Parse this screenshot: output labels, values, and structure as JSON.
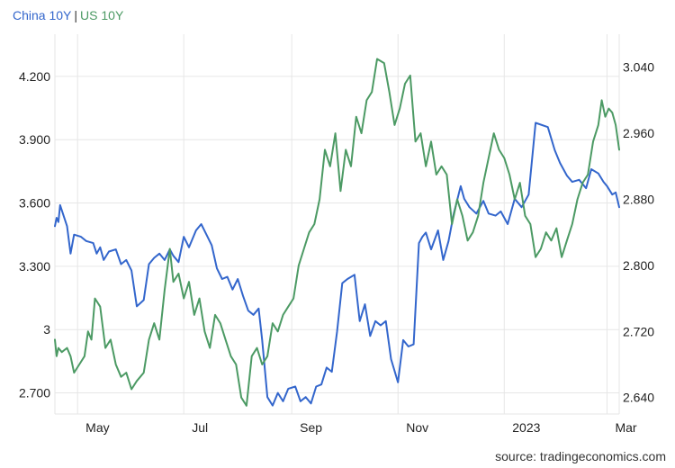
{
  "chart_data": {
    "type": "line",
    "legend": [
      {
        "label": "China 10Y",
        "color": "#3366cc"
      },
      {
        "label": "US 10Y",
        "color": "#4c9a64"
      }
    ],
    "legend_separator": "|",
    "source": "source: tradingeconomics.com",
    "x_range": [
      "2022-04-18",
      "2023-03-08"
    ],
    "x_ticks": [
      {
        "label": "May",
        "date": "2022-05-01"
      },
      {
        "label": "Jul",
        "date": "2022-07-01"
      },
      {
        "label": "Sep",
        "date": "2022-09-01"
      },
      {
        "label": "Nov",
        "date": "2022-11-01"
      },
      {
        "label": "2023",
        "date": "2023-01-01"
      },
      {
        "label": "Mar",
        "date": "2023-03-01"
      }
    ],
    "y_left": {
      "range": [
        2.6,
        4.4
      ],
      "ticks": [
        {
          "label": "2.700",
          "value": 2.7
        },
        {
          "label": "3",
          "value": 3.0
        },
        {
          "label": "3.300",
          "value": 3.3
        },
        {
          "label": "3.600",
          "value": 3.6
        },
        {
          "label": "3.900",
          "value": 3.9
        },
        {
          "label": "4.200",
          "value": 4.2
        }
      ]
    },
    "y_right": {
      "range": [
        2.62,
        3.08
      ],
      "ticks": [
        {
          "label": "2.640",
          "value": 2.64
        },
        {
          "label": "2.720",
          "value": 2.72
        },
        {
          "label": "2.800",
          "value": 2.8
        },
        {
          "label": "2.880",
          "value": 2.88
        },
        {
          "label": "2.960",
          "value": 2.96
        },
        {
          "label": "3.040",
          "value": 3.04
        }
      ]
    },
    "grid": true,
    "series": [
      {
        "name": "China 10Y",
        "axis": "left",
        "color": "#3366cc",
        "points": [
          [
            "2022-04-18",
            3.49
          ],
          [
            "2022-04-19",
            3.53
          ],
          [
            "2022-04-20",
            3.51
          ],
          [
            "2022-04-21",
            3.59
          ],
          [
            "2022-04-25",
            3.49
          ],
          [
            "2022-04-27",
            3.36
          ],
          [
            "2022-04-29",
            3.45
          ],
          [
            "2022-05-03",
            3.44
          ],
          [
            "2022-05-06",
            3.42
          ],
          [
            "2022-05-10",
            3.41
          ],
          [
            "2022-05-12",
            3.36
          ],
          [
            "2022-05-14",
            3.39
          ],
          [
            "2022-05-16",
            3.33
          ],
          [
            "2022-05-19",
            3.37
          ],
          [
            "2022-05-23",
            3.38
          ],
          [
            "2022-05-26",
            3.31
          ],
          [
            "2022-05-29",
            3.33
          ],
          [
            "2022-06-01",
            3.28
          ],
          [
            "2022-06-04",
            3.11
          ],
          [
            "2022-06-08",
            3.14
          ],
          [
            "2022-06-11",
            3.31
          ],
          [
            "2022-06-14",
            3.34
          ],
          [
            "2022-06-17",
            3.36
          ],
          [
            "2022-06-20",
            3.33
          ],
          [
            "2022-06-23",
            3.38
          ],
          [
            "2022-06-25",
            3.35
          ],
          [
            "2022-06-28",
            3.32
          ],
          [
            "2022-07-01",
            3.44
          ],
          [
            "2022-07-04",
            3.39
          ],
          [
            "2022-07-08",
            3.47
          ],
          [
            "2022-07-11",
            3.5
          ],
          [
            "2022-07-14",
            3.45
          ],
          [
            "2022-07-17",
            3.4
          ],
          [
            "2022-07-20",
            3.29
          ],
          [
            "2022-07-23",
            3.24
          ],
          [
            "2022-07-26",
            3.25
          ],
          [
            "2022-07-29",
            3.19
          ],
          [
            "2022-08-01",
            3.24
          ],
          [
            "2022-08-04",
            3.16
          ],
          [
            "2022-08-07",
            3.09
          ],
          [
            "2022-08-10",
            3.07
          ],
          [
            "2022-08-13",
            3.1
          ],
          [
            "2022-08-15",
            2.95
          ],
          [
            "2022-08-18",
            2.68
          ],
          [
            "2022-08-21",
            2.64
          ],
          [
            "2022-08-24",
            2.7
          ],
          [
            "2022-08-27",
            2.66
          ],
          [
            "2022-08-30",
            2.72
          ],
          [
            "2022-09-03",
            2.73
          ],
          [
            "2022-09-06",
            2.66
          ],
          [
            "2022-09-09",
            2.68
          ],
          [
            "2022-09-12",
            2.65
          ],
          [
            "2022-09-15",
            2.73
          ],
          [
            "2022-09-18",
            2.74
          ],
          [
            "2022-09-21",
            2.82
          ],
          [
            "2022-09-24",
            2.8
          ],
          [
            "2022-09-27",
            2.99
          ],
          [
            "2022-09-30",
            3.22
          ],
          [
            "2022-10-03",
            3.24
          ],
          [
            "2022-10-07",
            3.26
          ],
          [
            "2022-10-10",
            3.04
          ],
          [
            "2022-10-13",
            3.12
          ],
          [
            "2022-10-16",
            2.97
          ],
          [
            "2022-10-19",
            3.04
          ],
          [
            "2022-10-22",
            3.02
          ],
          [
            "2022-10-25",
            3.04
          ],
          [
            "2022-10-28",
            2.86
          ],
          [
            "2022-11-01",
            2.75
          ],
          [
            "2022-11-04",
            2.95
          ],
          [
            "2022-11-07",
            2.92
          ],
          [
            "2022-11-10",
            2.93
          ],
          [
            "2022-11-13",
            3.41
          ],
          [
            "2022-11-15",
            3.44
          ],
          [
            "2022-11-17",
            3.46
          ],
          [
            "2022-11-20",
            3.38
          ],
          [
            "2022-11-24",
            3.47
          ],
          [
            "2022-11-27",
            3.33
          ],
          [
            "2022-11-30",
            3.42
          ],
          [
            "2022-12-03",
            3.55
          ],
          [
            "2022-12-07",
            3.68
          ],
          [
            "2022-12-09",
            3.62
          ],
          [
            "2022-12-12",
            3.58
          ],
          [
            "2022-12-16",
            3.55
          ],
          [
            "2022-12-20",
            3.61
          ],
          [
            "2022-12-23",
            3.55
          ],
          [
            "2022-12-27",
            3.54
          ],
          [
            "2022-12-30",
            3.56
          ],
          [
            "2023-01-03",
            3.5
          ],
          [
            "2023-01-07",
            3.62
          ],
          [
            "2023-01-11",
            3.58
          ],
          [
            "2023-01-15",
            3.64
          ],
          [
            "2023-01-19",
            3.98
          ],
          [
            "2023-01-26",
            3.96
          ],
          [
            "2023-01-30",
            3.85
          ],
          [
            "2023-02-02",
            3.79
          ],
          [
            "2023-02-06",
            3.73
          ],
          [
            "2023-02-09",
            3.7
          ],
          [
            "2023-02-13",
            3.71
          ],
          [
            "2023-02-17",
            3.67
          ],
          [
            "2023-02-20",
            3.76
          ],
          [
            "2023-02-24",
            3.74
          ],
          [
            "2023-02-27",
            3.7
          ],
          [
            "2023-03-01",
            3.68
          ],
          [
            "2023-03-04",
            3.64
          ],
          [
            "2023-03-06",
            3.65
          ],
          [
            "2023-03-08",
            3.58
          ]
        ]
      },
      {
        "name": "US 10Y",
        "axis": "right",
        "color": "#4c9a64",
        "points": [
          [
            "2022-04-18",
            2.71
          ],
          [
            "2022-04-19",
            2.69
          ],
          [
            "2022-04-20",
            2.7
          ],
          [
            "2022-04-22",
            2.695
          ],
          [
            "2022-04-25",
            2.7
          ],
          [
            "2022-04-27",
            2.69
          ],
          [
            "2022-04-29",
            2.67
          ],
          [
            "2022-05-02",
            2.68
          ],
          [
            "2022-05-05",
            2.69
          ],
          [
            "2022-05-07",
            2.72
          ],
          [
            "2022-05-09",
            2.71
          ],
          [
            "2022-05-11",
            2.76
          ],
          [
            "2022-05-14",
            2.75
          ],
          [
            "2022-05-17",
            2.7
          ],
          [
            "2022-05-20",
            2.71
          ],
          [
            "2022-05-23",
            2.68
          ],
          [
            "2022-05-26",
            2.665
          ],
          [
            "2022-05-29",
            2.67
          ],
          [
            "2022-06-01",
            2.65
          ],
          [
            "2022-06-04",
            2.66
          ],
          [
            "2022-06-08",
            2.67
          ],
          [
            "2022-06-11",
            2.71
          ],
          [
            "2022-06-14",
            2.73
          ],
          [
            "2022-06-17",
            2.71
          ],
          [
            "2022-06-20",
            2.77
          ],
          [
            "2022-06-23",
            2.82
          ],
          [
            "2022-06-25",
            2.78
          ],
          [
            "2022-06-28",
            2.79
          ],
          [
            "2022-07-01",
            2.76
          ],
          [
            "2022-07-04",
            2.78
          ],
          [
            "2022-07-07",
            2.74
          ],
          [
            "2022-07-10",
            2.76
          ],
          [
            "2022-07-13",
            2.72
          ],
          [
            "2022-07-16",
            2.7
          ],
          [
            "2022-07-19",
            2.74
          ],
          [
            "2022-07-22",
            2.73
          ],
          [
            "2022-07-25",
            2.71
          ],
          [
            "2022-07-28",
            2.69
          ],
          [
            "2022-07-31",
            2.68
          ],
          [
            "2022-08-03",
            2.64
          ],
          [
            "2022-08-06",
            2.63
          ],
          [
            "2022-08-09",
            2.69
          ],
          [
            "2022-08-12",
            2.7
          ],
          [
            "2022-08-15",
            2.68
          ],
          [
            "2022-08-18",
            2.69
          ],
          [
            "2022-08-21",
            2.73
          ],
          [
            "2022-08-24",
            2.72
          ],
          [
            "2022-08-27",
            2.74
          ],
          [
            "2022-08-30",
            2.75
          ],
          [
            "2022-09-02",
            2.76
          ],
          [
            "2022-09-05",
            2.8
          ],
          [
            "2022-09-08",
            2.82
          ],
          [
            "2022-09-11",
            2.84
          ],
          [
            "2022-09-14",
            2.85
          ],
          [
            "2022-09-17",
            2.88
          ],
          [
            "2022-09-20",
            2.94
          ],
          [
            "2022-09-23",
            2.92
          ],
          [
            "2022-09-26",
            2.96
          ],
          [
            "2022-09-29",
            2.89
          ],
          [
            "2022-10-02",
            2.94
          ],
          [
            "2022-10-05",
            2.92
          ],
          [
            "2022-10-08",
            2.98
          ],
          [
            "2022-10-11",
            2.96
          ],
          [
            "2022-10-14",
            3.0
          ],
          [
            "2022-10-17",
            3.01
          ],
          [
            "2022-10-20",
            3.05
          ],
          [
            "2022-10-24",
            3.045
          ],
          [
            "2022-10-27",
            3.01
          ],
          [
            "2022-10-30",
            2.97
          ],
          [
            "2022-11-02",
            2.99
          ],
          [
            "2022-11-05",
            3.02
          ],
          [
            "2022-11-08",
            3.03
          ],
          [
            "2022-11-11",
            2.95
          ],
          [
            "2022-11-14",
            2.96
          ],
          [
            "2022-11-17",
            2.92
          ],
          [
            "2022-11-20",
            2.95
          ],
          [
            "2022-11-23",
            2.91
          ],
          [
            "2022-11-26",
            2.92
          ],
          [
            "2022-11-29",
            2.91
          ],
          [
            "2022-12-02",
            2.85
          ],
          [
            "2022-12-05",
            2.88
          ],
          [
            "2022-12-08",
            2.86
          ],
          [
            "2022-12-11",
            2.83
          ],
          [
            "2022-12-14",
            2.84
          ],
          [
            "2022-12-17",
            2.86
          ],
          [
            "2022-12-20",
            2.9
          ],
          [
            "2022-12-23",
            2.93
          ],
          [
            "2022-12-26",
            2.96
          ],
          [
            "2022-12-29",
            2.94
          ],
          [
            "2023-01-01",
            2.93
          ],
          [
            "2023-01-04",
            2.91
          ],
          [
            "2023-01-07",
            2.88
          ],
          [
            "2023-01-10",
            2.9
          ],
          [
            "2023-01-13",
            2.86
          ],
          [
            "2023-01-16",
            2.85
          ],
          [
            "2023-01-19",
            2.81
          ],
          [
            "2023-01-22",
            2.82
          ],
          [
            "2023-01-25",
            2.84
          ],
          [
            "2023-01-28",
            2.83
          ],
          [
            "2023-01-31",
            2.845
          ],
          [
            "2023-02-03",
            2.81
          ],
          [
            "2023-02-06",
            2.83
          ],
          [
            "2023-02-09",
            2.85
          ],
          [
            "2023-02-12",
            2.88
          ],
          [
            "2023-02-15",
            2.9
          ],
          [
            "2023-02-18",
            2.91
          ],
          [
            "2023-02-21",
            2.95
          ],
          [
            "2023-02-24",
            2.97
          ],
          [
            "2023-02-26",
            3.0
          ],
          [
            "2023-02-28",
            2.98
          ],
          [
            "2023-03-02",
            2.99
          ],
          [
            "2023-03-04",
            2.985
          ],
          [
            "2023-03-06",
            2.97
          ],
          [
            "2023-03-08",
            2.94
          ]
        ]
      }
    ]
  }
}
